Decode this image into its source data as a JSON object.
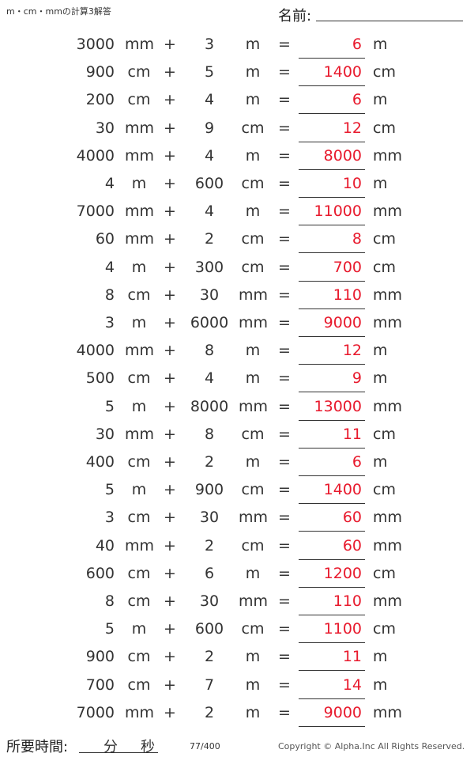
{
  "header": {
    "title": "m・cm・mmの計算3解答",
    "name_label": "名前:"
  },
  "rows": [
    [
      "3000",
      "mm",
      "3",
      "m",
      "6",
      "m"
    ],
    [
      "900",
      "cm",
      "5",
      "m",
      "1400",
      "cm"
    ],
    [
      "200",
      "cm",
      "4",
      "m",
      "6",
      "m"
    ],
    [
      "30",
      "mm",
      "9",
      "cm",
      "12",
      "cm"
    ],
    [
      "4000",
      "mm",
      "4",
      "m",
      "8000",
      "mm"
    ],
    [
      "4",
      "m",
      "600",
      "cm",
      "10",
      "m"
    ],
    [
      "7000",
      "mm",
      "4",
      "m",
      "11000",
      "mm"
    ],
    [
      "60",
      "mm",
      "2",
      "cm",
      "8",
      "cm"
    ],
    [
      "4",
      "m",
      "300",
      "cm",
      "700",
      "cm"
    ],
    [
      "8",
      "cm",
      "30",
      "mm",
      "110",
      "mm"
    ],
    [
      "3",
      "m",
      "6000",
      "mm",
      "9000",
      "mm"
    ],
    [
      "4000",
      "mm",
      "8",
      "m",
      "12",
      "m"
    ],
    [
      "500",
      "cm",
      "4",
      "m",
      "9",
      "m"
    ],
    [
      "5",
      "m",
      "8000",
      "mm",
      "13000",
      "mm"
    ],
    [
      "30",
      "mm",
      "8",
      "cm",
      "11",
      "cm"
    ],
    [
      "400",
      "cm",
      "2",
      "m",
      "6",
      "m"
    ],
    [
      "5",
      "m",
      "900",
      "cm",
      "1400",
      "cm"
    ],
    [
      "3",
      "cm",
      "30",
      "mm",
      "60",
      "mm"
    ],
    [
      "40",
      "mm",
      "2",
      "cm",
      "60",
      "mm"
    ],
    [
      "600",
      "cm",
      "6",
      "m",
      "1200",
      "cm"
    ],
    [
      "8",
      "cm",
      "30",
      "mm",
      "110",
      "mm"
    ],
    [
      "5",
      "m",
      "600",
      "cm",
      "1100",
      "cm"
    ],
    [
      "900",
      "cm",
      "2",
      "m",
      "11",
      "m"
    ],
    [
      "700",
      "cm",
      "7",
      "m",
      "14",
      "m"
    ],
    [
      "7000",
      "mm",
      "2",
      "m",
      "9000",
      "mm"
    ]
  ],
  "operators": {
    "plus": "+",
    "equals": "="
  },
  "footer": {
    "time_label": "所要時間:",
    "minutes": "分",
    "seconds": "秒",
    "page": "77/400",
    "copyright": "Copyright © Alpha.Inc All Rights Reserved."
  },
  "colors": {
    "answer": "#e8192c"
  }
}
